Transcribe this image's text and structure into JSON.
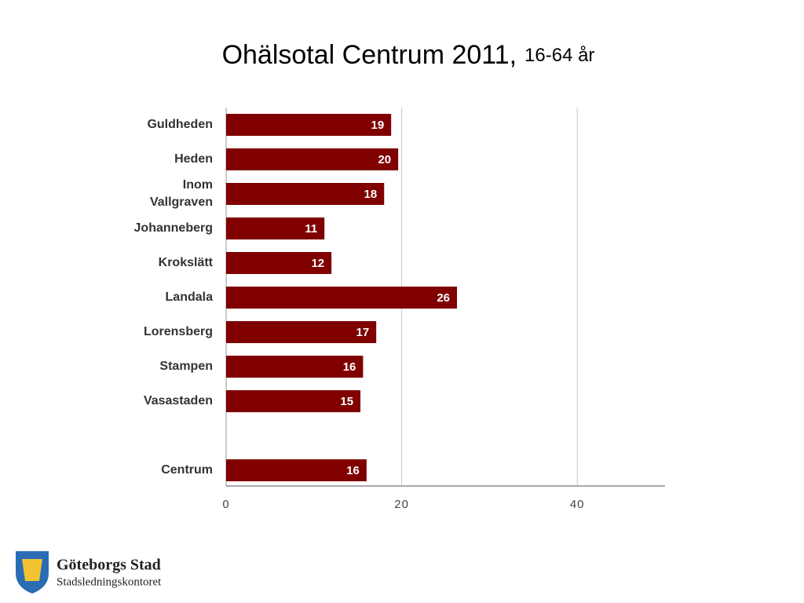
{
  "chart_data": {
    "type": "bar",
    "orientation": "horizontal",
    "title": "Ohälsotal Centrum 2011,",
    "subtitle": "16-64 år",
    "categories": [
      "Guldheden",
      "Heden",
      "Inom Vallgraven",
      "Johanneberg",
      "Krokslätt",
      "Landala",
      "Lorensberg",
      "Stampen",
      "Vasastaden",
      null,
      "Centrum"
    ],
    "values": [
      18.8,
      19.6,
      18,
      11.2,
      12,
      26.3,
      17.1,
      15.6,
      15.3,
      null,
      16
    ],
    "value_labels": [
      "19",
      "20",
      "18",
      "11",
      "12",
      "26",
      "17",
      "16",
      "15",
      null,
      "16"
    ],
    "color": "#800000",
    "xlim": [
      0,
      50
    ],
    "xticks": [
      0,
      20,
      40
    ],
    "grid": true
  },
  "footer": {
    "logo_title": "Göteborgs Stad",
    "logo_subtitle": "Stadsledningskontoret"
  }
}
